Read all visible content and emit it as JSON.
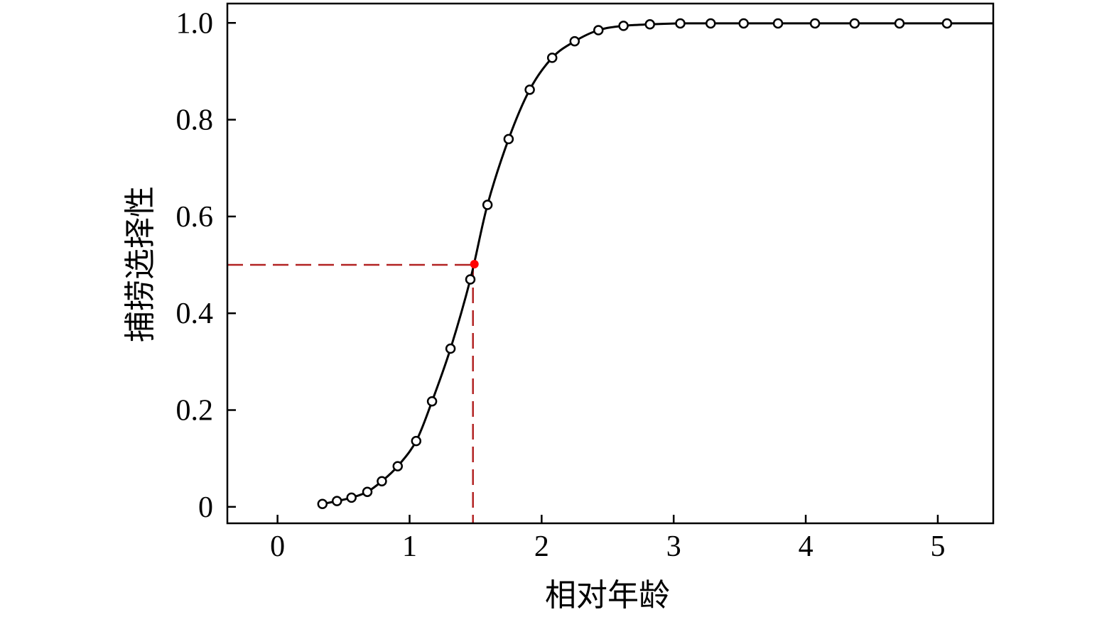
{
  "chart_data": {
    "type": "line",
    "xlabel": "相对年龄",
    "ylabel": "捕捞选择性",
    "xlim": [
      -0.38,
      5.42
    ],
    "ylim": [
      -0.034,
      1.04
    ],
    "xticks": [
      0,
      1,
      2,
      3,
      4,
      5
    ],
    "xtick_labels": [
      "0",
      "1",
      "2",
      "3",
      "4",
      "5"
    ],
    "yticks": [
      0,
      0.2,
      0.4,
      0.6,
      0.8,
      1.0
    ],
    "ytick_labels": [
      "0",
      "0.2",
      "0.4",
      "0.6",
      "0.8",
      "1.0"
    ],
    "grid": false,
    "series": [
      {
        "style": "markers",
        "marker": "open-circle",
        "color": "#000000",
        "x": [
          0.34,
          0.45,
          0.56,
          0.68,
          0.79,
          0.91,
          1.05,
          1.17,
          1.31,
          1.46,
          1.59,
          1.75,
          1.91,
          2.08,
          2.25,
          2.43,
          2.62,
          2.82,
          3.05,
          3.28,
          3.53,
          3.79,
          4.07,
          4.37,
          4.71,
          5.07
        ],
        "y": [
          0.006,
          0.012,
          0.019,
          0.031,
          0.053,
          0.084,
          0.136,
          0.218,
          0.327,
          0.47,
          0.624,
          0.76,
          0.862,
          0.928,
          0.962,
          0.985,
          0.994,
          0.997,
          0.999,
          0.999,
          0.999,
          0.999,
          0.999,
          0.999,
          0.999,
          0.999
        ]
      },
      {
        "style": "line",
        "color": "#000000",
        "x": [
          0.34,
          0.45,
          0.56,
          0.68,
          0.79,
          0.91,
          1.05,
          1.17,
          1.31,
          1.46,
          1.59,
          1.75,
          1.91,
          2.08,
          2.25,
          2.43,
          2.62,
          2.82,
          3.05,
          3.28,
          3.53,
          3.79,
          4.07,
          4.37,
          4.71,
          5.07,
          5.42
        ],
        "y": [
          0.006,
          0.012,
          0.019,
          0.031,
          0.053,
          0.084,
          0.136,
          0.218,
          0.327,
          0.47,
          0.624,
          0.76,
          0.862,
          0.928,
          0.962,
          0.985,
          0.994,
          0.997,
          0.999,
          0.999,
          0.999,
          0.999,
          0.999,
          0.999,
          0.999,
          0.999,
          0.999
        ]
      }
    ],
    "annotations": {
      "point_color": "#ff0000",
      "line_color": "#b22222",
      "point": {
        "x": 1.48,
        "y": 0.5
      }
    }
  }
}
